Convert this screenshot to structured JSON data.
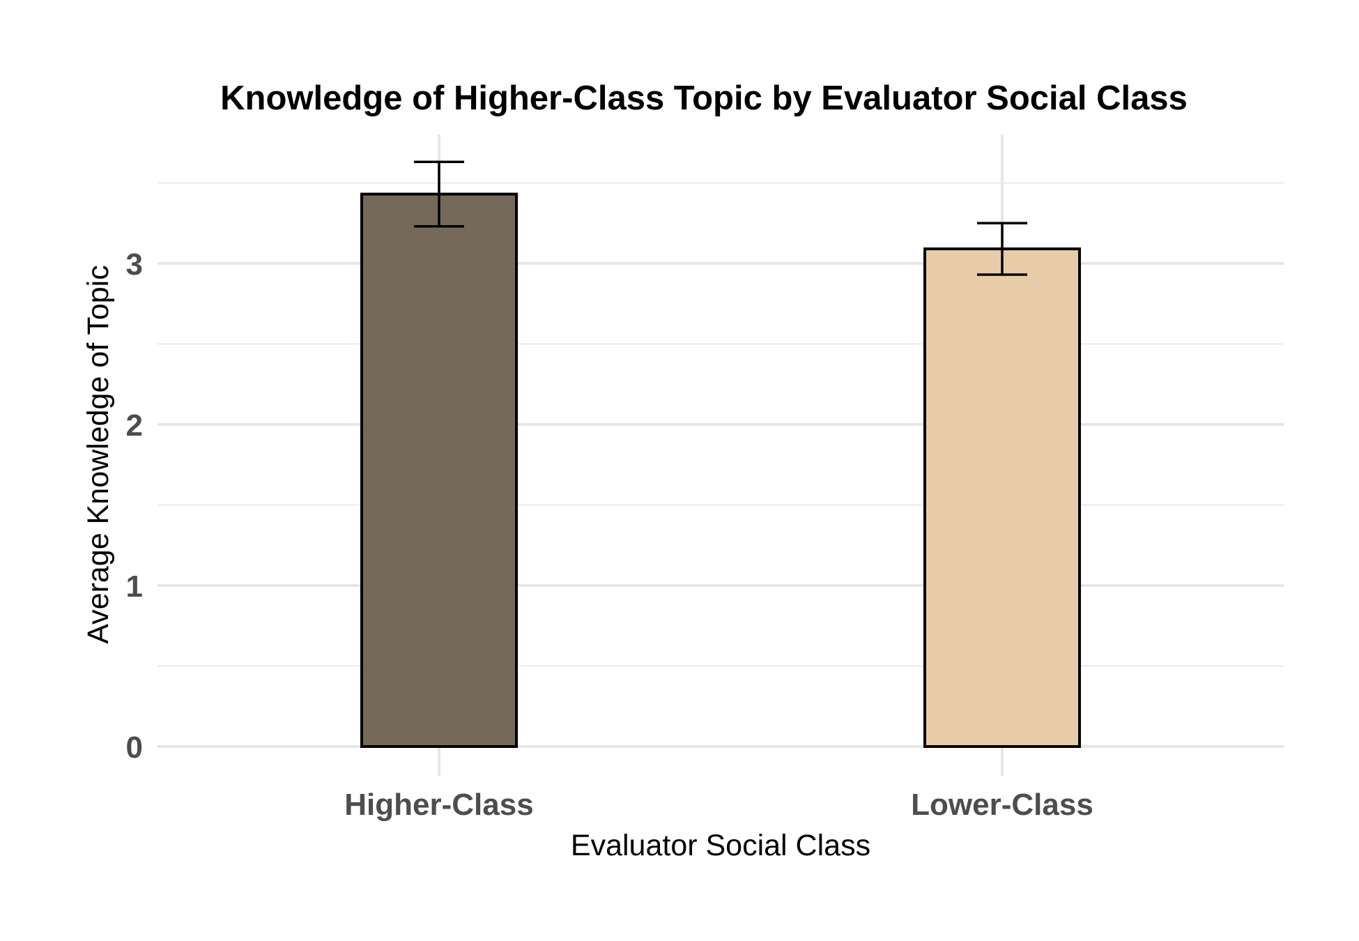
{
  "chart_data": {
    "type": "bar",
    "title": "Knowledge of Higher-Class Topic by Evaluator Social Class",
    "xlabel": "Evaluator Social Class",
    "ylabel": "Average Knowledge of Topic",
    "categories": [
      "Higher-Class",
      "Lower-Class"
    ],
    "values": [
      3.43,
      3.09
    ],
    "error_low": [
      3.23,
      2.93
    ],
    "error_high": [
      3.63,
      3.25
    ],
    "bar_colors": [
      "#756a59",
      "#e8ccaa"
    ],
    "ylim": [
      0,
      3.8
    ],
    "yticks": [
      0,
      1,
      2,
      3
    ],
    "yticks_minor": [
      0.5,
      1.5,
      2.5,
      3.5
    ],
    "grid": true,
    "legend": "none"
  }
}
